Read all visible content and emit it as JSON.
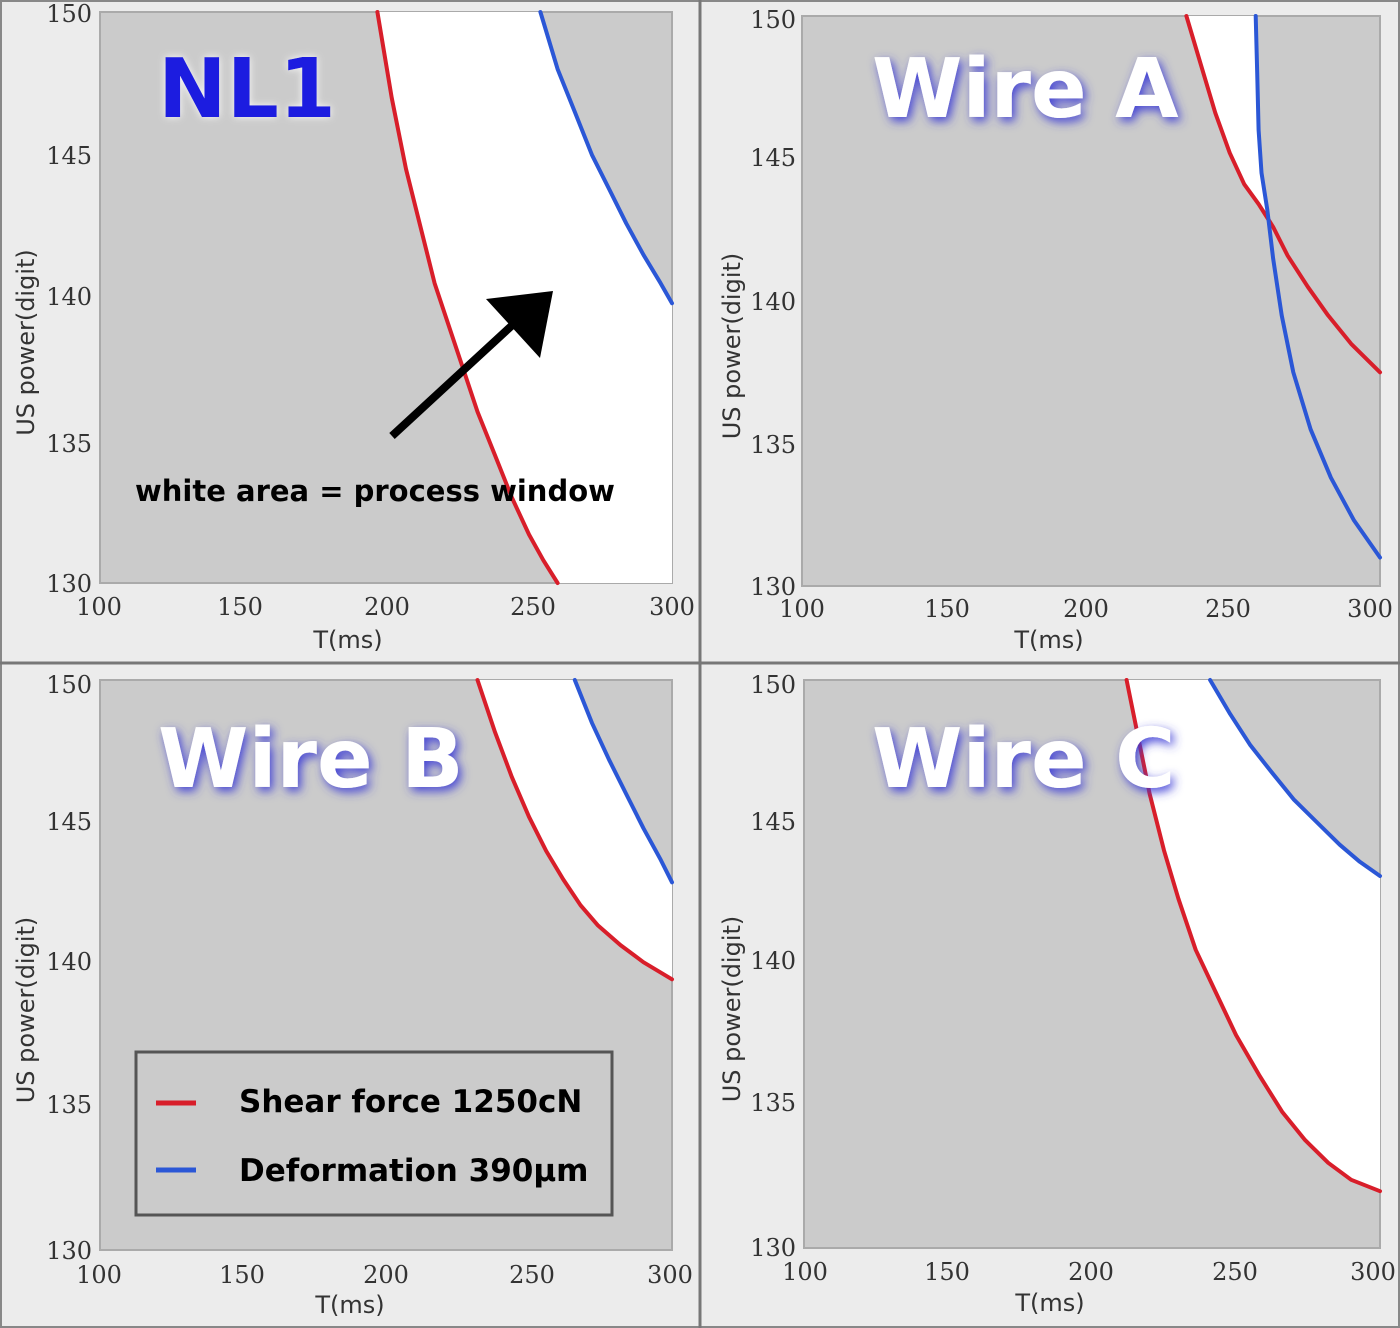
{
  "legend": {
    "items": [
      {
        "label": "Shear force 1250cN",
        "color": "#d81e2a"
      },
      {
        "label": "Deformation 390μm",
        "color": "#2b57d6"
      }
    ]
  },
  "annotation": {
    "text": "white area = process window"
  },
  "chart_data": [
    {
      "type": "line",
      "title": "NL1",
      "title_color": "#1a1ee0",
      "xlabel": "T(ms)",
      "ylabel": "US power(digit)",
      "xlim": [
        100,
        300
      ],
      "ylim": [
        130,
        150
      ],
      "xticks": [
        100,
        150,
        200,
        250,
        300
      ],
      "yticks": [
        130,
        135,
        140,
        145,
        150
      ],
      "tick_labels": {
        "x": [
          "100",
          "150",
          "200",
          "250",
          "300"
        ],
        "y": [
          "130",
          "135",
          "140",
          "145",
          "150"
        ]
      },
      "grid": false,
      "fill": {
        "color": "#ffffff",
        "background": "#cbcbcb",
        "description_key": "annotation"
      },
      "series": [
        {
          "name": "Shear force 1250cN",
          "color": "#d81e2a",
          "points": [
            [
              197,
              150
            ],
            [
              202,
              147
            ],
            [
              207,
              144.5
            ],
            [
              212,
              142.5
            ],
            [
              217,
              140.5
            ],
            [
              222,
              139
            ],
            [
              227,
              137.5
            ],
            [
              232,
              136
            ],
            [
              238,
              134.5
            ],
            [
              244,
              133
            ],
            [
              250,
              131.7
            ],
            [
              255,
              130.8
            ],
            [
              260,
              130
            ]
          ]
        },
        {
          "name": "Deformation 390μm",
          "color": "#2b57d6",
          "points": [
            [
              254,
              150
            ],
            [
              260,
              148
            ],
            [
              266,
              146.5
            ],
            [
              272,
              145
            ],
            [
              278,
              143.8
            ],
            [
              284,
              142.6
            ],
            [
              290,
              141.5
            ],
            [
              296,
              140.5
            ],
            [
              300,
              139.8
            ]
          ]
        }
      ]
    },
    {
      "type": "line",
      "title": "Wire A",
      "title_color": "#ffffff",
      "xlabel": "T(ms)",
      "ylabel": "US power(digit)",
      "xlim": [
        100,
        300
      ],
      "ylim": [
        130,
        150
      ],
      "xticks": [
        100,
        150,
        200,
        250,
        300
      ],
      "yticks": [
        130,
        135,
        140,
        145,
        150
      ],
      "tick_labels": {
        "x": [
          "100",
          "150",
          "200",
          "250",
          "300"
        ],
        "y": [
          "130",
          "135",
          "140",
          "145",
          "150"
        ]
      },
      "grid": false,
      "fill": {
        "color": "#ffffff",
        "background": "#cbcbcb"
      },
      "series": [
        {
          "name": "Shear force 1250cN",
          "color": "#d81e2a",
          "points": [
            [
              233,
              150
            ],
            [
              238,
              148.3
            ],
            [
              243,
              146.6
            ],
            [
              248,
              145.2
            ],
            [
              253,
              144.1
            ],
            [
              258,
              143.4
            ],
            [
              263,
              142.6
            ],
            [
              268,
              141.6
            ],
            [
              275,
              140.5
            ],
            [
              282,
              139.5
            ],
            [
              290,
              138.5
            ],
            [
              300,
              137.5
            ]
          ]
        },
        {
          "name": "Deformation 390μm",
          "color": "#2b57d6",
          "points": [
            [
              257,
              150
            ],
            [
              257.5,
              148
            ],
            [
              258,
              146
            ],
            [
              259,
              144.5
            ],
            [
              261,
              143.2
            ],
            [
              263,
              141.5
            ],
            [
              266,
              139.5
            ],
            [
              270,
              137.5
            ],
            [
              276,
              135.5
            ],
            [
              283,
              133.8
            ],
            [
              291,
              132.3
            ],
            [
              300,
              131
            ]
          ]
        }
      ]
    },
    {
      "type": "line",
      "title": "Wire B",
      "title_color": "#ffffff",
      "xlabel": "T(ms)",
      "ylabel": "US power(digit)",
      "xlim": [
        100,
        300
      ],
      "ylim": [
        130,
        150
      ],
      "xticks": [
        100,
        150,
        200,
        250,
        300
      ],
      "yticks": [
        130,
        135,
        140,
        145,
        150
      ],
      "tick_labels": {
        "x": [
          "100",
          "150",
          "200",
          "250",
          "300"
        ],
        "y": [
          "130",
          "135",
          "140",
          "145",
          "150"
        ]
      },
      "grid": false,
      "fill": {
        "color": "#ffffff",
        "background": "#cbcbcb"
      },
      "series": [
        {
          "name": "Shear force 1250cN",
          "color": "#d81e2a",
          "points": [
            [
              232,
              150
            ],
            [
              238,
              148.2
            ],
            [
              244,
              146.6
            ],
            [
              250,
              145.2
            ],
            [
              256,
              144
            ],
            [
              262,
              143
            ],
            [
              268,
              142.1
            ],
            [
              274,
              141.4
            ],
            [
              282,
              140.7
            ],
            [
              290,
              140.1
            ],
            [
              300,
              139.5
            ]
          ]
        },
        {
          "name": "Deformation 390μm",
          "color": "#2b57d6",
          "points": [
            [
              266,
              150
            ],
            [
              272,
              148.5
            ],
            [
              278,
              147.2
            ],
            [
              284,
              146
            ],
            [
              290,
              144.8
            ],
            [
              296,
              143.7
            ],
            [
              300,
              142.9
            ]
          ]
        }
      ]
    },
    {
      "type": "line",
      "title": "Wire C",
      "title_color": "#ffffff",
      "xlabel": "T(ms)",
      "ylabel": "US power(digit)",
      "xlim": [
        100,
        300
      ],
      "ylim": [
        130,
        150
      ],
      "xticks": [
        100,
        150,
        200,
        250,
        300
      ],
      "yticks": [
        130,
        135,
        140,
        145,
        150
      ],
      "tick_labels": {
        "x": [
          "100",
          "150",
          "200",
          "250",
          "300"
        ],
        "y": [
          "130",
          "135",
          "140",
          "145",
          "150"
        ]
      },
      "grid": false,
      "fill": {
        "color": "#ffffff",
        "background": "#cbcbcb"
      },
      "series": [
        {
          "name": "Shear force 1250cN",
          "color": "#d81e2a",
          "points": [
            [
              212,
              150
            ],
            [
              216,
              148
            ],
            [
              220,
              146
            ],
            [
              225,
              144
            ],
            [
              230,
              142.3
            ],
            [
              236,
              140.5
            ],
            [
              243,
              139
            ],
            [
              250,
              137.5
            ],
            [
              258,
              136.1
            ],
            [
              266,
              134.8
            ],
            [
              274,
              133.8
            ],
            [
              282,
              133
            ],
            [
              290,
              132.4
            ],
            [
              300,
              132
            ]
          ]
        },
        {
          "name": "Deformation 390μm",
          "color": "#2b57d6",
          "points": [
            [
              241,
              150
            ],
            [
              248,
              148.8
            ],
            [
              255,
              147.7
            ],
            [
              262,
              146.8
            ],
            [
              270,
              145.8
            ],
            [
              278,
              145
            ],
            [
              286,
              144.2
            ],
            [
              293,
              143.6
            ],
            [
              300,
              143.1
            ]
          ]
        }
      ]
    }
  ]
}
